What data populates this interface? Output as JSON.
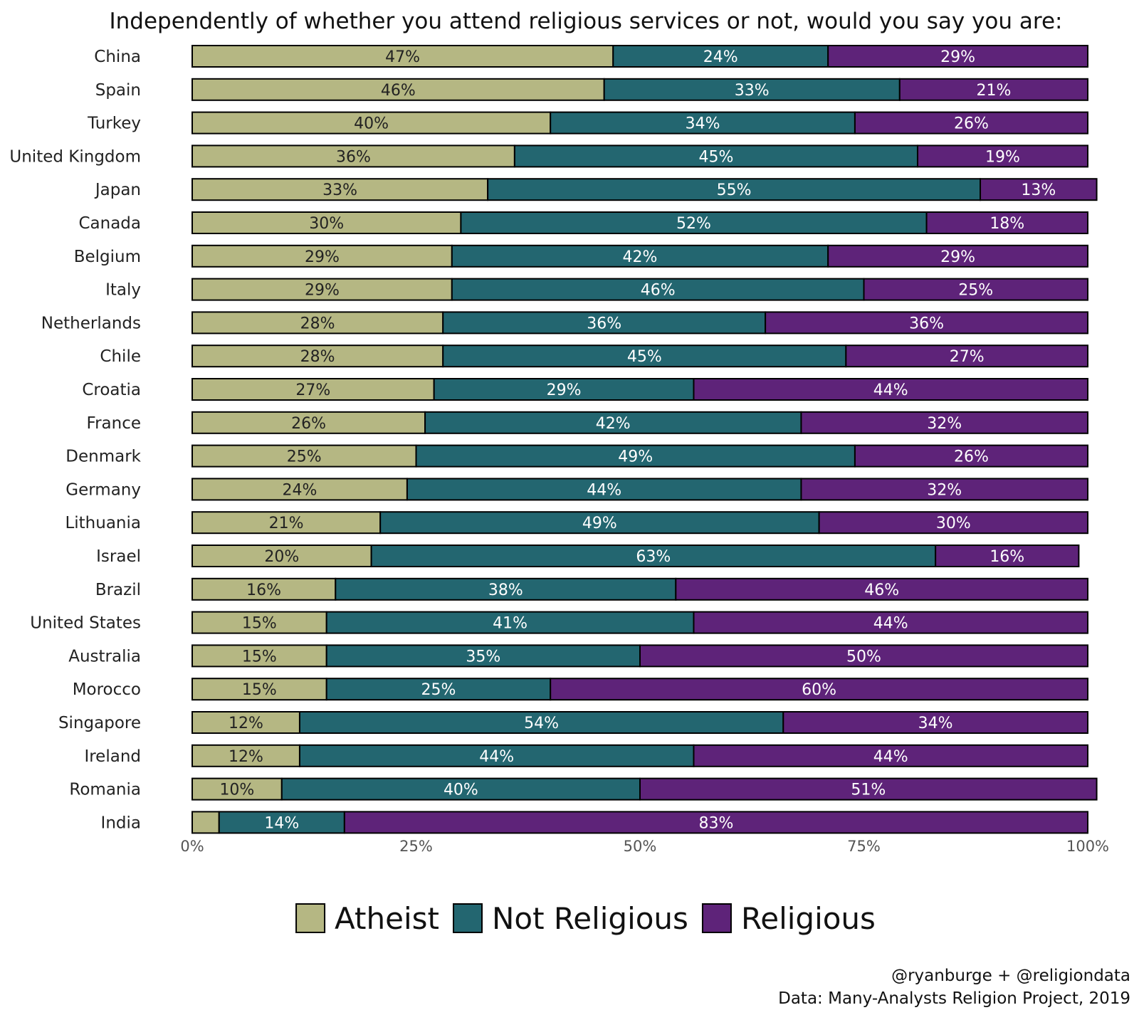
{
  "chart_data": {
    "type": "bar",
    "orientation": "horizontal",
    "stacked": true,
    "title": "Independently of whether you attend religious services or not, would you say you are:",
    "xlabel": "",
    "ylabel": "",
    "xlim": [
      0,
      100
    ],
    "x_ticks": [
      "0%",
      "25%",
      "50%",
      "75%",
      "100%"
    ],
    "x_tick_values": [
      0,
      25,
      50,
      75,
      100
    ],
    "grid": false,
    "legend_position": "bottom",
    "categories": [
      "China",
      "Spain",
      "Turkey",
      "United Kingdom",
      "Japan",
      "Canada",
      "Belgium",
      "Italy",
      "Netherlands",
      "Chile",
      "Croatia",
      "France",
      "Denmark",
      "Germany",
      "Lithuania",
      "Israel",
      "Brazil",
      "United States",
      "Australia",
      "Morocco",
      "Singapore",
      "Ireland",
      "Romania",
      "India"
    ],
    "series": [
      {
        "name": "Atheist",
        "color": "#b5b783",
        "label_color": "#222222",
        "values": [
          47,
          46,
          40,
          36,
          33,
          30,
          29,
          29,
          28,
          28,
          27,
          26,
          25,
          24,
          21,
          20,
          16,
          15,
          15,
          15,
          12,
          12,
          10,
          3
        ],
        "labels": [
          "47%",
          "46%",
          "40%",
          "36%",
          "33%",
          "30%",
          "29%",
          "29%",
          "28%",
          "28%",
          "27%",
          "26%",
          "25%",
          "24%",
          "21%",
          "20%",
          "16%",
          "15%",
          "15%",
          "15%",
          "12%",
          "12%",
          "10%",
          ""
        ]
      },
      {
        "name": "Not Religious",
        "color": "#236670",
        "label_color": "#ffffff",
        "values": [
          24,
          33,
          34,
          45,
          55,
          52,
          42,
          46,
          36,
          45,
          29,
          42,
          49,
          44,
          49,
          63,
          38,
          41,
          35,
          25,
          54,
          44,
          40,
          14
        ],
        "labels": [
          "24%",
          "33%",
          "34%",
          "45%",
          "55%",
          "52%",
          "42%",
          "46%",
          "36%",
          "45%",
          "29%",
          "42%",
          "49%",
          "44%",
          "49%",
          "63%",
          "38%",
          "41%",
          "35%",
          "25%",
          "54%",
          "44%",
          "40%",
          "14%"
        ]
      },
      {
        "name": "Religious",
        "color": "#5e2379",
        "label_color": "#ffffff",
        "values": [
          29,
          21,
          26,
          19,
          13,
          18,
          29,
          25,
          36,
          27,
          44,
          32,
          26,
          32,
          30,
          16,
          46,
          44,
          50,
          60,
          34,
          44,
          51,
          83
        ],
        "labels": [
          "29%",
          "21%",
          "26%",
          "19%",
          "13%",
          "18%",
          "29%",
          "25%",
          "36%",
          "27%",
          "44%",
          "32%",
          "26%",
          "32%",
          "30%",
          "16%",
          "46%",
          "44%",
          "50%",
          "60%",
          "34%",
          "44%",
          "51%",
          "83%"
        ]
      }
    ]
  },
  "credits": {
    "line1": "@ryanburge + @religiondata",
    "line2": "Data: Many-Analysts Religion Project, 2019"
  }
}
